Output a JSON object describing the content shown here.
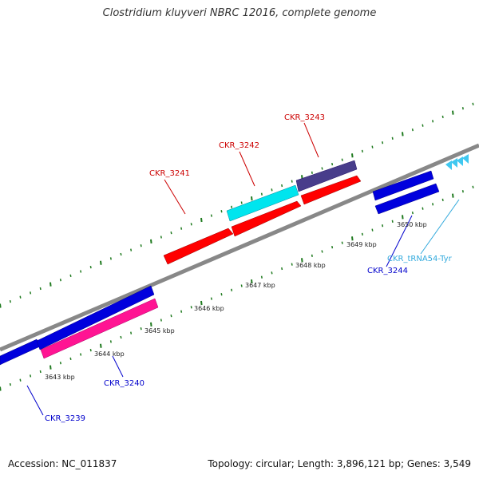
{
  "title": "Clostridium kluyveri NBRC 12016, complete genome",
  "footer": {
    "accession": "Accession: NC_011837",
    "summary": "Topology: circular; Length: 3,896,121 bp; Genes: 3,549"
  },
  "colors": {
    "background": "#ffffff",
    "backbone": "#808080",
    "tick": "#1f7a1f",
    "forward_gene": "#ff0000",
    "reverse_gene": "#0000dd",
    "cds_highlight": "#00e5ee",
    "cds_pink": "#ff1493",
    "cds_purple": "#483d8b",
    "trna": "#40c8f0",
    "label_blue": "#0000cc",
    "label_red": "#cc0000",
    "label_cyan": "#33aadd"
  },
  "scale_labels": [
    "3643 kbp",
    "3644 kbp",
    "3645 kbp",
    "3646 kbp",
    "3647 kbp",
    "3648 kbp",
    "3649 kbp",
    "3650 kbp"
  ],
  "gene_labels": {
    "ckr_3239": "CKR_3239",
    "ckr_3240": "CKR_3240",
    "ckr_3241": "CKR_3241",
    "ckr_3242": "CKR_3242",
    "ckr_3243": "CKR_3243",
    "ckr_3244": "CKR_3244",
    "trna": "CKR_tRNA54-Tyr"
  },
  "legend_icons": [
    "genome-backbone",
    "scale-ticks",
    "gene-arrows"
  ]
}
